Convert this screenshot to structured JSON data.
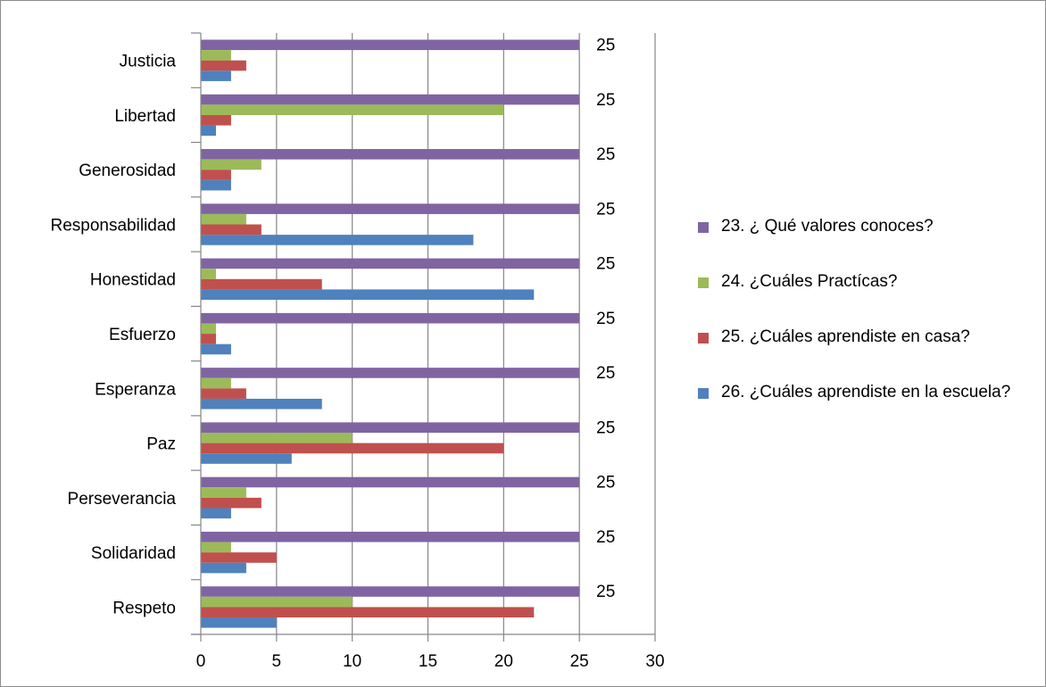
{
  "chart_data": {
    "type": "bar",
    "orientation": "horizontal",
    "categories": [
      "Justicia",
      "Libertad",
      "Generosidad",
      "Responsabilidad",
      "Honestidad",
      "Esfuerzo",
      "Esperanza",
      "Paz",
      "Perseverancia",
      "Solidaridad",
      "Respeto"
    ],
    "series": [
      {
        "name": "23. ¿ Qué valores conoces?",
        "color": "#8064a2",
        "values": [
          25,
          25,
          25,
          25,
          25,
          25,
          25,
          25,
          25,
          25,
          25
        ]
      },
      {
        "name": "24. ¿Cuáles Practícas?",
        "color": "#9bbb59",
        "values": [
          2,
          20,
          4,
          3,
          1,
          1,
          2,
          10,
          3,
          2,
          10
        ]
      },
      {
        "name": "25. ¿Cuáles aprendiste en casa?",
        "color": "#c0504d",
        "values": [
          3,
          2,
          2,
          4,
          8,
          1,
          3,
          20,
          4,
          5,
          22
        ]
      },
      {
        "name": "26. ¿Cuáles aprendiste en la escuela?",
        "color": "#4f81bd",
        "values": [
          2,
          1,
          2,
          18,
          22,
          2,
          8,
          6,
          2,
          3,
          5
        ]
      }
    ],
    "data_labels_series": "23. ¿ Qué valores conoces?",
    "xlim": [
      0,
      30
    ],
    "xticks": [
      0,
      5,
      10,
      15,
      20,
      25,
      30
    ],
    "grid": true,
    "legend_position": "right",
    "title": "",
    "xlabel": "",
    "ylabel": ""
  }
}
